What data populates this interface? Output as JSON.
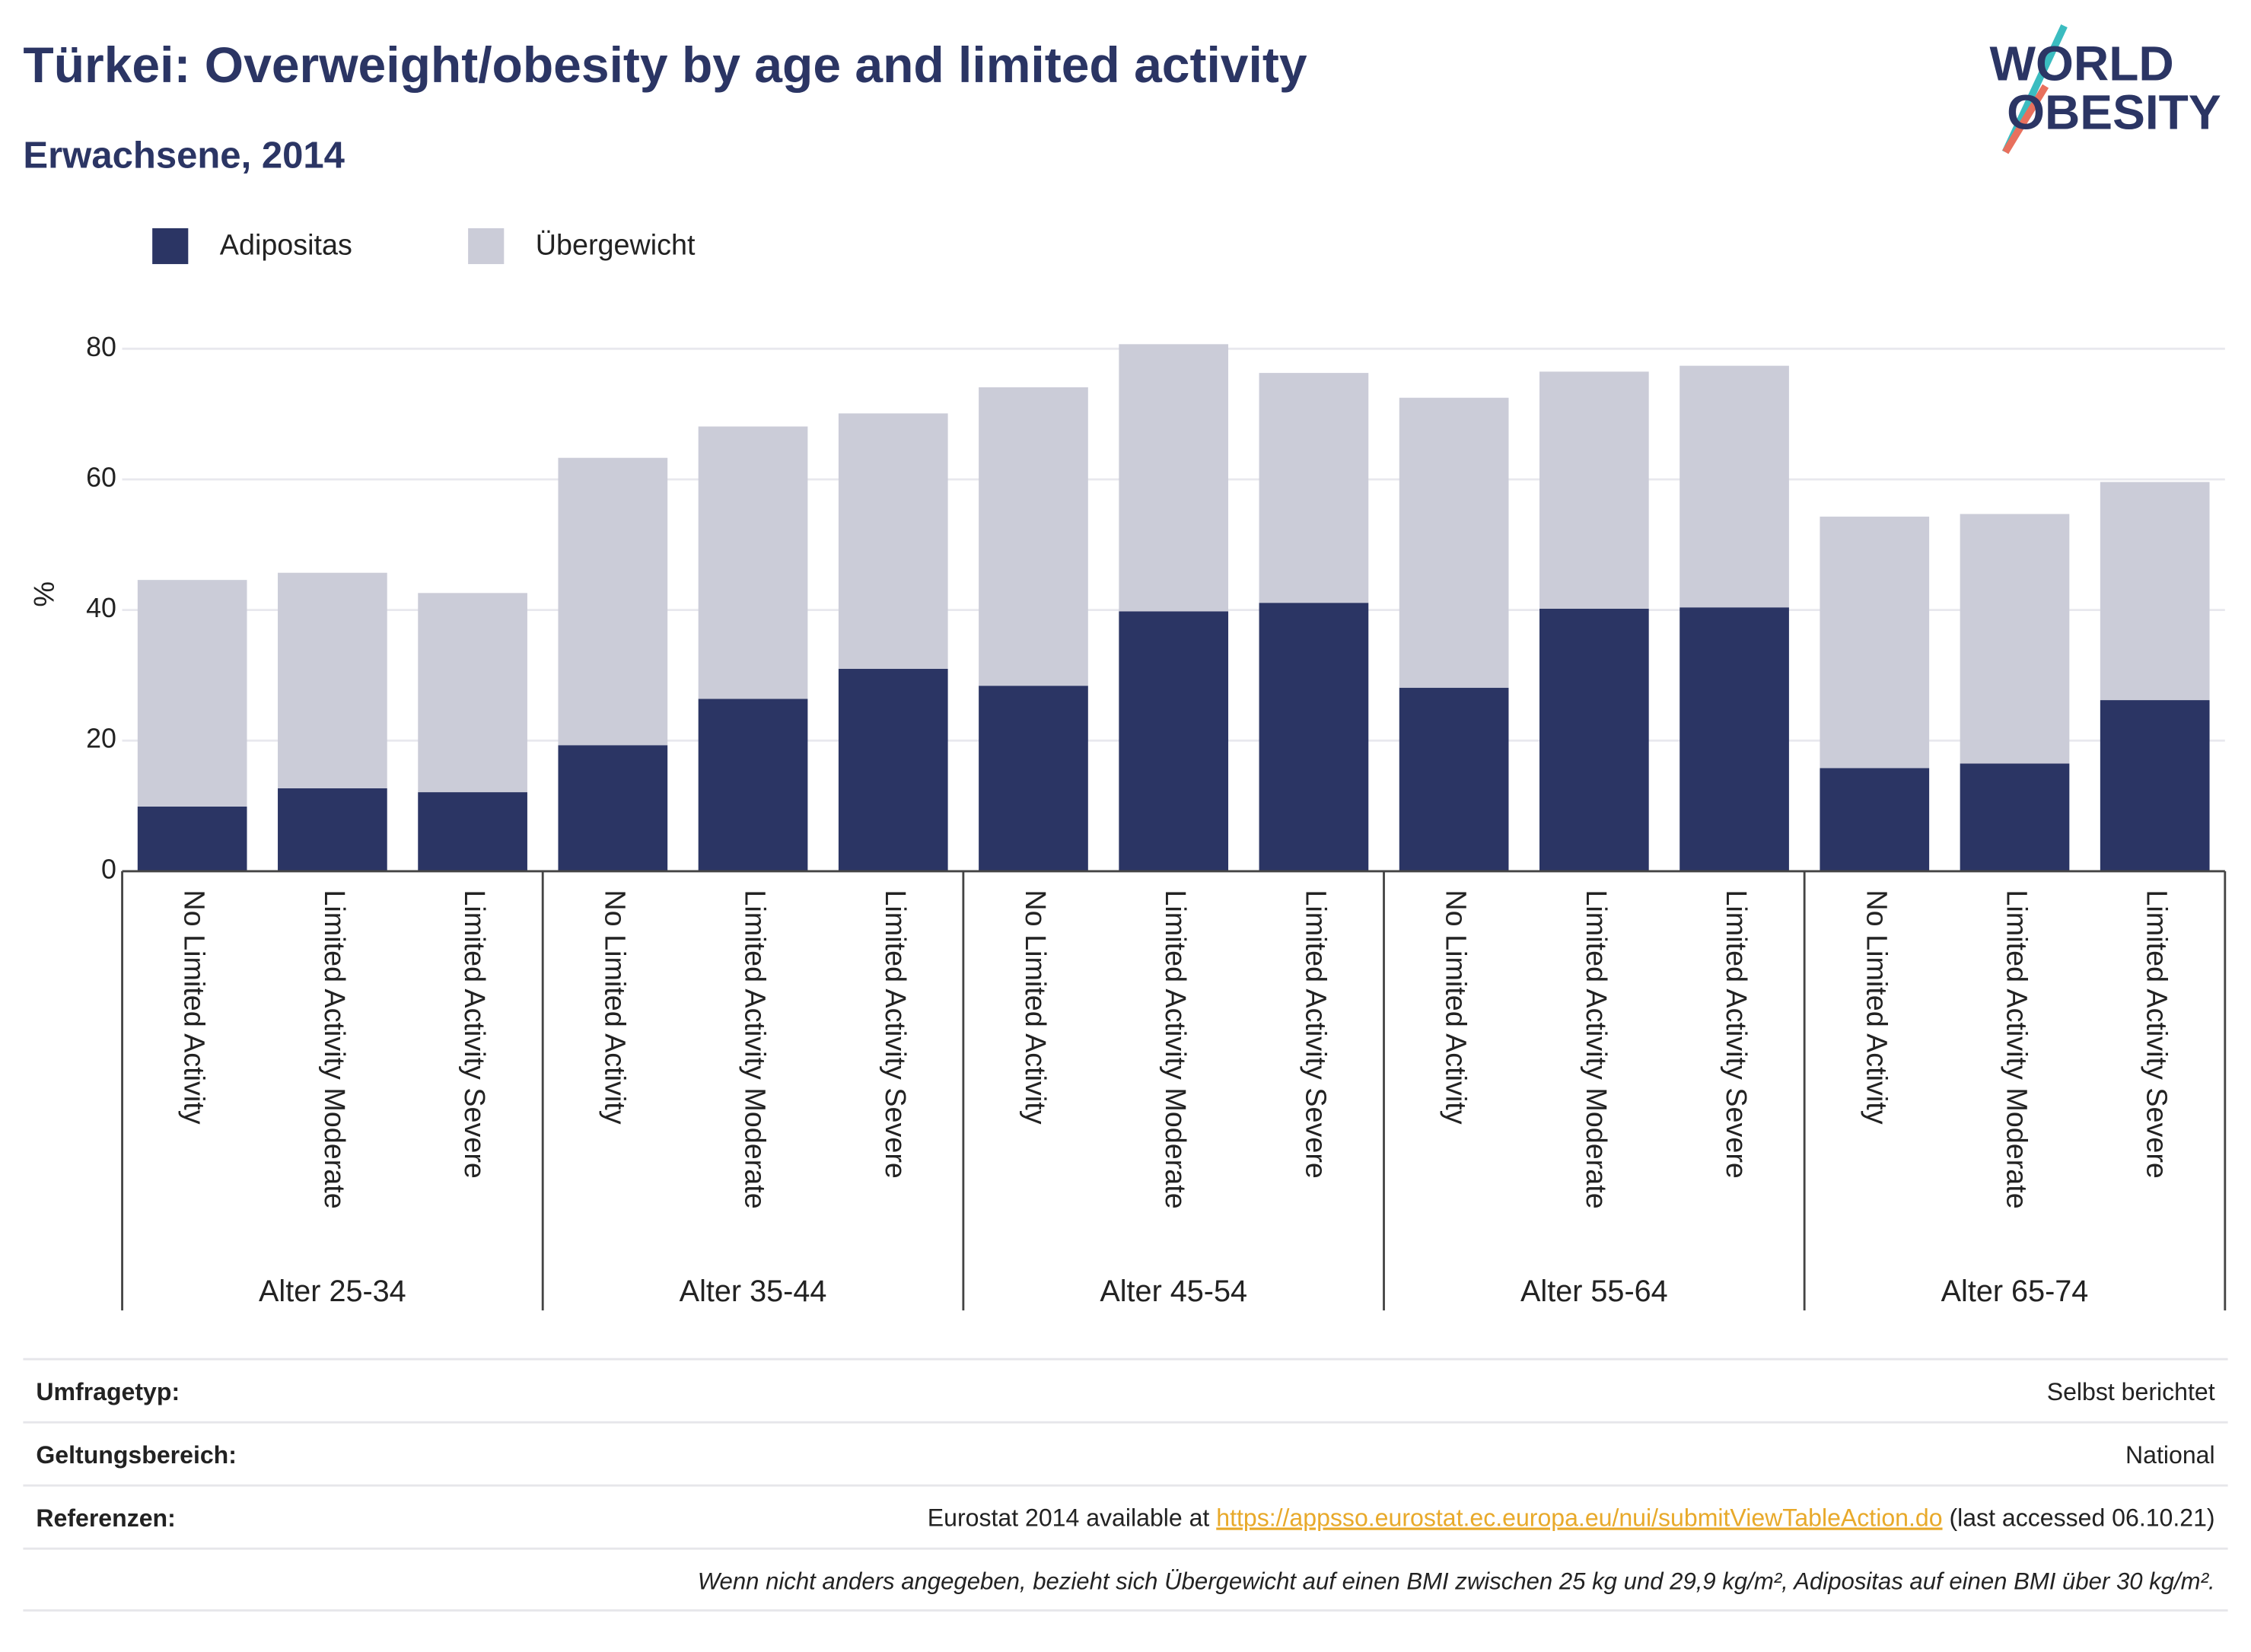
{
  "chart_data": {
    "type": "stacked_bar",
    "title": "Türkei: Overweight/obesity by age and limited activity",
    "subtitle": "Erwachsene, 2014",
    "y_label": "%",
    "logo": [
      "WORLD",
      "OBESITY"
    ],
    "groups": [
      {
        "label": "Alter 25-34",
        "categories": [
          "No Limited Activity",
          "Limited Activity Moderate",
          "Limited Activity Severe"
        ]
      },
      {
        "label": "Alter 35-44",
        "categories": [
          "No Limited Activity",
          "Limited Activity Moderate",
          "Limited Activity Severe"
        ]
      },
      {
        "label": "Alter 45-54",
        "categories": [
          "No Limited Activity",
          "Limited Activity Moderate",
          "Limited Activity Severe"
        ]
      },
      {
        "label": "Alter 55-64",
        "categories": [
          "No Limited Activity",
          "Limited Activity Moderate",
          "Limited Activity Severe"
        ]
      },
      {
        "label": "Alter 65-74",
        "categories": [
          "No Limited Activity",
          "Limited Activity Moderate",
          "Limited Activity Severe"
        ]
      }
    ],
    "series": [
      {
        "name": "Adipositas",
        "color": "#2b3564",
        "values": [
          9.9,
          12.7,
          12.1,
          19.3,
          26.4,
          31.0,
          28.4,
          39.8,
          41.1,
          28.1,
          40.2,
          40.4,
          15.8,
          16.5,
          26.2
        ]
      },
      {
        "name": "Übergewicht",
        "color": "#cbccd8",
        "values": [
          34.7,
          33.0,
          30.5,
          44.0,
          41.7,
          39.1,
          45.7,
          40.9,
          35.2,
          44.4,
          36.3,
          37.0,
          38.5,
          38.2,
          33.4
        ]
      }
    ],
    "ylim": [
      0,
      85
    ],
    "yticks": [
      0,
      20,
      40,
      60,
      80
    ],
    "grid": true,
    "legend": "top-left"
  },
  "footer": {
    "rows": [
      {
        "label": "Umfragetyp:",
        "value": "Selbst berichtet"
      },
      {
        "label": "Geltungsbereich:",
        "value": "National"
      }
    ],
    "references": {
      "label": "Referenzen:",
      "text": "Eurostat 2014 available at ",
      "link": "https://appsso.eurostat.ec.europa.eu/nui/submitViewTableAction.do",
      "suffix": " (last accessed 06.10.21)"
    },
    "note": "Wenn nicht anders angegeben, bezieht sich Übergewicht auf einen BMI zwischen 25 kg und 29,9 kg/m², Adipositas auf einen BMI über 30 kg/m²."
  }
}
